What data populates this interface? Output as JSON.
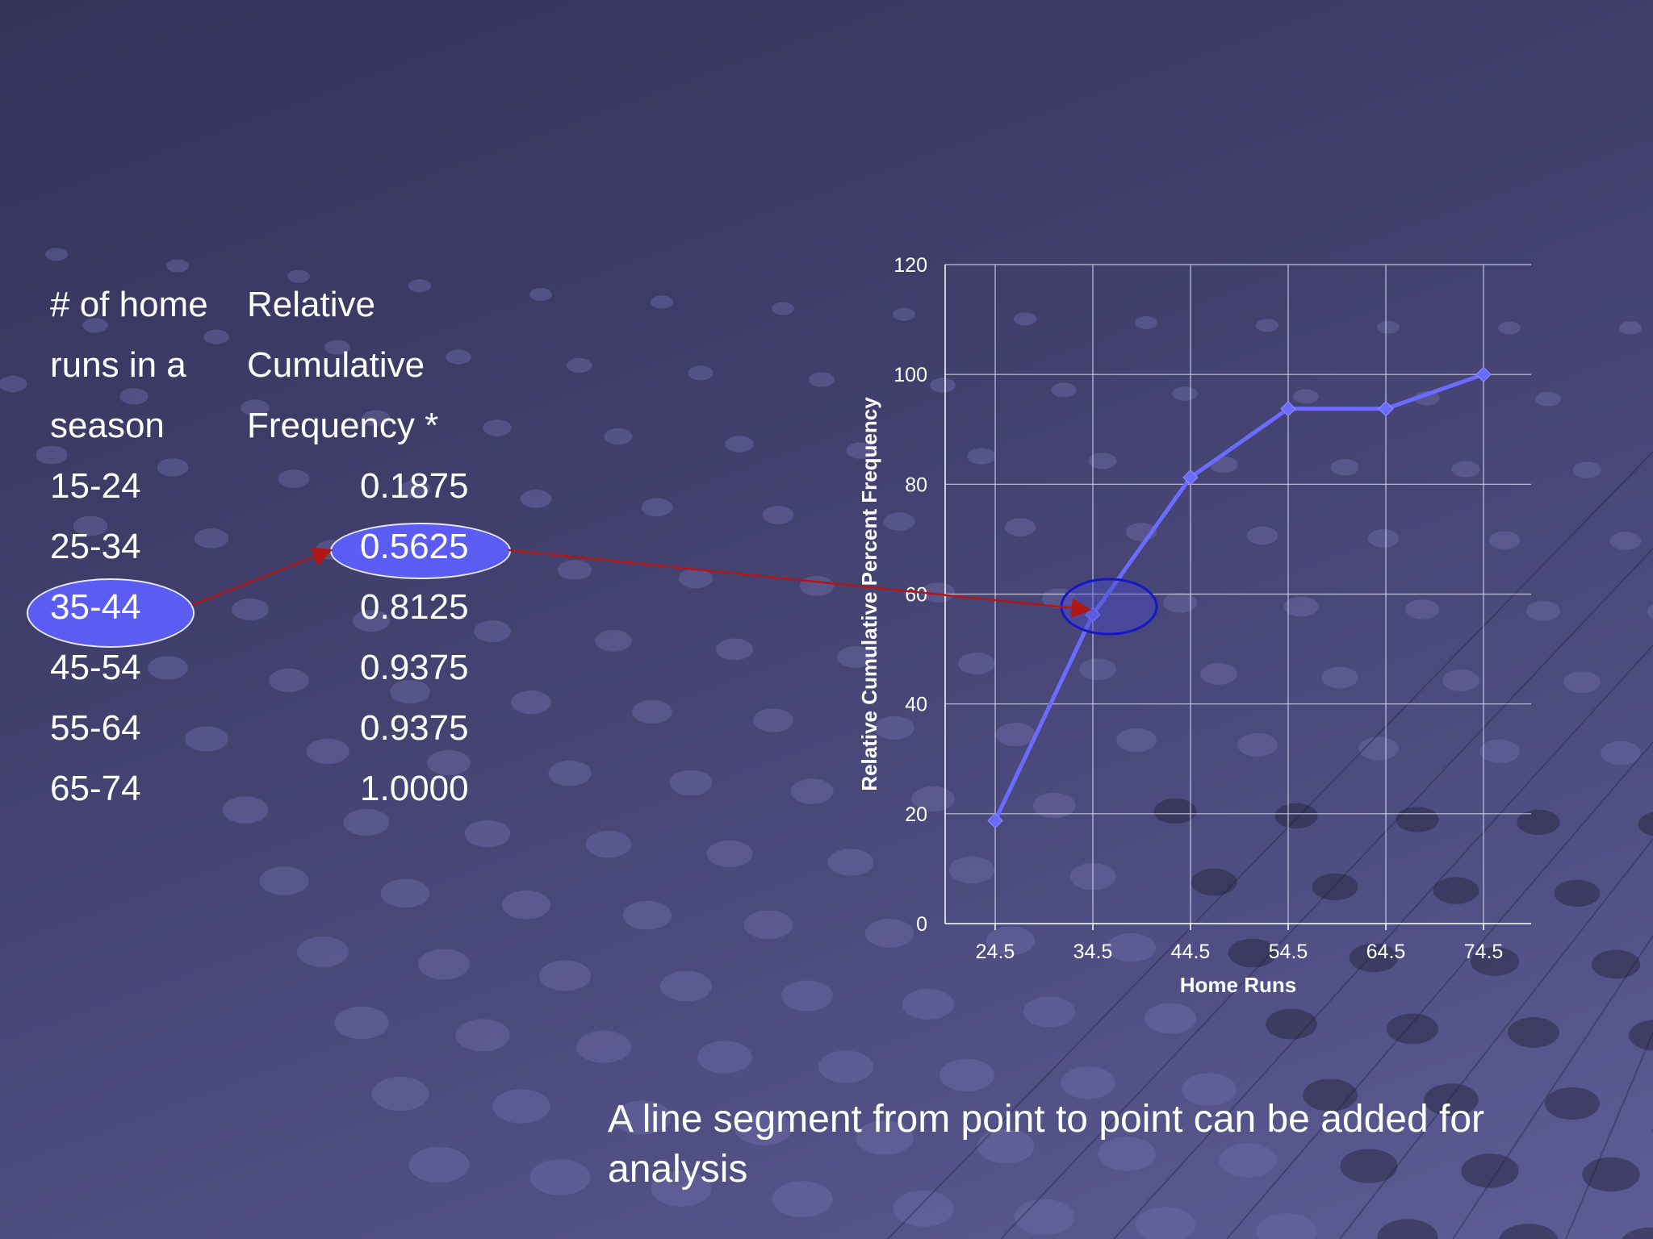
{
  "table": {
    "header_left": [
      "# of home",
      "runs in a",
      "season"
    ],
    "header_right": [
      "Relative",
      "Cumulative",
      "Frequency *"
    ],
    "rows": [
      {
        "range": "15-24",
        "value": "0.1875"
      },
      {
        "range": "25-34",
        "value": "0.5625"
      },
      {
        "range": "35-44",
        "value": "0.8125"
      },
      {
        "range": "45-54",
        "value": "0.9375"
      },
      {
        "range": "55-64",
        "value": "0.9375"
      },
      {
        "range": "65-74",
        "value": "1.0000"
      }
    ],
    "highlighted_range": "35-44",
    "highlighted_value": "0.5625"
  },
  "caption": "A line segment from point to point can be added for analysis",
  "colors": {
    "series": "#6b6cff",
    "highlight_fill": "#5b5cf2",
    "arrow": "#b01818",
    "grid": "#d8d8ee"
  },
  "chart_data": {
    "type": "line",
    "x": [
      24.5,
      34.5,
      44.5,
      54.5,
      64.5,
      74.5
    ],
    "x_tick_labels": [
      "24.5",
      "34.5",
      "44.5",
      "54.5",
      "64.5",
      "74.5"
    ],
    "values": [
      18.75,
      56.25,
      81.25,
      93.75,
      93.75,
      100
    ],
    "y_ticks": [
      0,
      20,
      40,
      60,
      80,
      100,
      120
    ],
    "ylim": [
      0,
      120
    ],
    "xlabel": "Home Runs",
    "ylabel": "Relative Cumulative Percent Frequency",
    "grid": true,
    "highlighted_point": 34.5
  }
}
